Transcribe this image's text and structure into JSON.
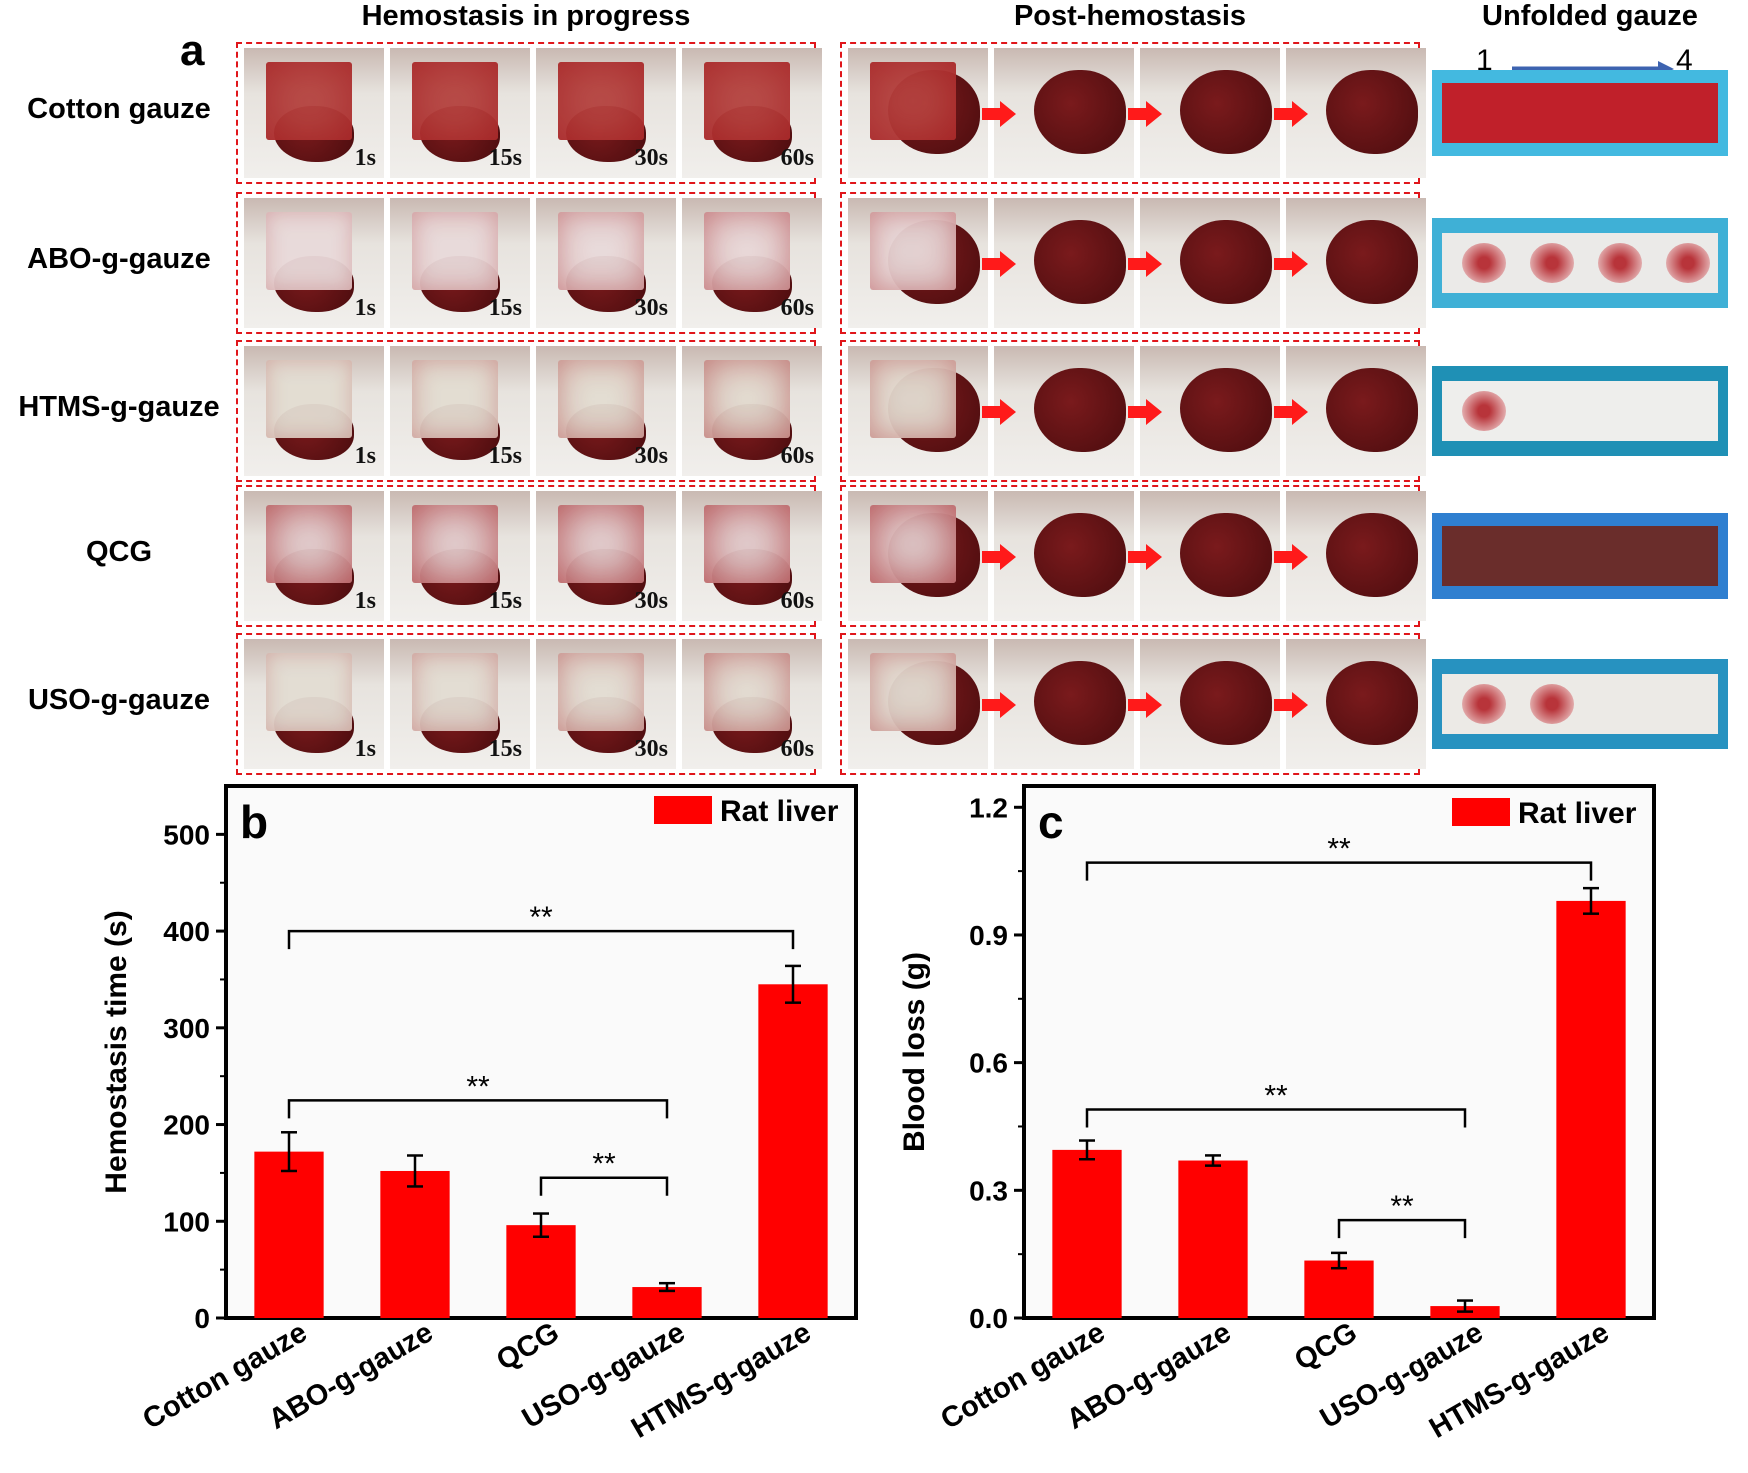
{
  "panel_a": {
    "letter": "a",
    "header_progress": "Hemostasis in progress",
    "header_post": "Post-hemostasis",
    "header_unfolded": "Unfolded gauze",
    "unfolded_start": "1",
    "unfolded_end": "4",
    "rows": [
      {
        "label": "Cotton gauze",
        "gauze_color": "#b84a45",
        "strip_bg": "#43b9e0",
        "strip_fill": "#c0202a",
        "spots": 0,
        "saturated": true
      },
      {
        "label": "ABO-g-gauze",
        "gauze_color": "#e9dada",
        "strip_bg": "#3fb0d6",
        "strip_fill": "#ebeae8",
        "spots": 4,
        "saturated": false
      },
      {
        "label": "HTMS-g-gauze",
        "gauze_color": "#e3ddd2",
        "strip_bg": "#1f90b5",
        "strip_fill": "#eeeeec",
        "spots": 1,
        "saturated": false
      },
      {
        "label": "QCG",
        "gauze_color": "#e9e3e3",
        "strip_bg": "#2f7fd0",
        "strip_fill": "#6a2d2b",
        "spots": 0,
        "saturated": true
      },
      {
        "label": "USO-g-gauze",
        "gauze_color": "#e3ddd3",
        "strip_bg": "#2792c0",
        "strip_fill": "#eceae6",
        "spots": 2,
        "saturated": false
      }
    ],
    "times": [
      "1s",
      "15s",
      "30s",
      "60s"
    ]
  },
  "chart_data": [
    {
      "type": "bar",
      "panel": "b",
      "legend": "Rat liver",
      "ylabel": "Hemostasis time (s)",
      "categories": [
        "Cotton gauze",
        "ABO-g-gauze",
        "QCG",
        "USO-g-gauze",
        "HTMS-g-gauze"
      ],
      "values": [
        172,
        152,
        96,
        32,
        345
      ],
      "errors": [
        20,
        16,
        12,
        4,
        19
      ],
      "ylim": [
        0,
        550
      ],
      "yticks": [
        "0",
        "100",
        "200",
        "300",
        "400",
        "500"
      ],
      "significance": [
        {
          "from": 0,
          "to": 4,
          "level": 400,
          "label": "**"
        },
        {
          "from": 0,
          "to": 3,
          "level": 225,
          "label": "**"
        },
        {
          "from": 2,
          "to": 3,
          "level": 145,
          "label": "**"
        }
      ],
      "bar_color": "#ff0000"
    },
    {
      "type": "bar",
      "panel": "c",
      "legend": "Rat liver",
      "ylabel": "Blood loss (g)",
      "categories": [
        "Cotton gauze",
        "ABO-g-gauze",
        "QCG",
        "USO-g-gauze",
        "HTMS-g-gauze"
      ],
      "values": [
        0.395,
        0.37,
        0.135,
        0.028,
        0.98
      ],
      "errors": [
        0.022,
        0.012,
        0.018,
        0.013,
        0.03
      ],
      "ylim": [
        0,
        1.25
      ],
      "yticks": [
        "0.0",
        "0.3",
        "0.6",
        "0.9",
        "1.2"
      ],
      "significance": [
        {
          "from": 0,
          "to": 4,
          "level": 1.07,
          "label": "**"
        },
        {
          "from": 0,
          "to": 3,
          "level": 0.49,
          "label": "**"
        },
        {
          "from": 2,
          "to": 3,
          "level": 0.23,
          "label": "**"
        }
      ],
      "bar_color": "#ff0000"
    }
  ]
}
